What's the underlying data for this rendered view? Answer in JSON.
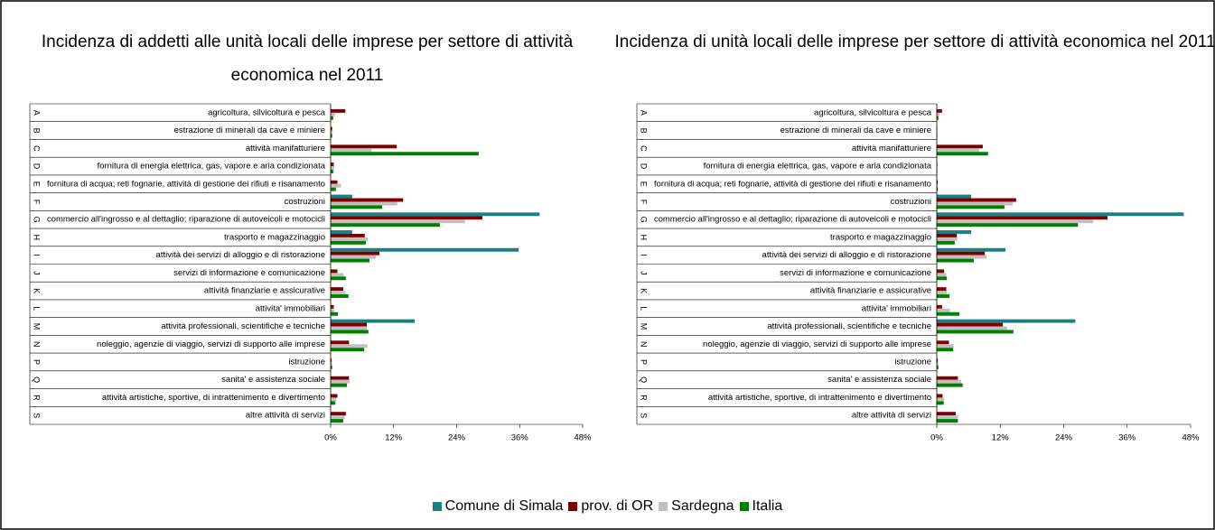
{
  "chart_data": [
    {
      "type": "bar",
      "orientation": "horizontal",
      "title": "Incidenza di addetti alle unità locali delle imprese per settore di attività economica nel 2011",
      "codes": [
        "A",
        "B",
        "C",
        "D",
        "E",
        "F",
        "G",
        "H",
        "I",
        "J",
        "K",
        "L",
        "M",
        "N",
        "P",
        "Q",
        "R",
        "S"
      ],
      "categories": [
        "agricoltura, silvicoltura e pesca",
        "estrazione di minerali da cave e miniere",
        "attività manifatturiere",
        "fornitura di energia elettrica, gas, vapore e aria condizionata",
        "fornitura di acqua; reti fognarie, attività di gestione dei rifiuti e risanamento",
        "costruzioni",
        "commercio all'ingrosso e al dettaglio; riparazione di autoveicoli e motocicli",
        "trasporto e magazzinaggio",
        "attività dei servizi di alloggio e di ristorazione",
        "servizi di informazione e comunicazione",
        "attività finanziarie e assicurative",
        "attivita' immobiliari",
        "attività professionali, scientifiche e tecniche",
        "noleggio, agenzie di viaggio, servizi di supporto alle imprese",
        "istruzione",
        "sanita' e assistenza sociale",
        "attività artistiche, sportive, di intrattenimento e divertimento",
        "altre attività di servizi"
      ],
      "series": [
        {
          "name": "Comune di Simala",
          "color": "#1a8080",
          "values": [
            0,
            0,
            0,
            0,
            0,
            4.1,
            39.8,
            4.1,
            35.8,
            0,
            0,
            0,
            16.0,
            0,
            0,
            0,
            0,
            0
          ]
        },
        {
          "name": "prov. di OR",
          "color": "#800000",
          "values": [
            2.8,
            0.3,
            12.6,
            0.6,
            1.3,
            13.8,
            28.9,
            6.5,
            9.3,
            1.3,
            2.4,
            0.6,
            6.9,
            3.5,
            0.2,
            3.5,
            1.3,
            2.9
          ]
        },
        {
          "name": "Sardegna",
          "color": "#c0c0c0",
          "values": [
            0.8,
            0.4,
            7.8,
            0.7,
            2.0,
            12.7,
            25.6,
            7.1,
            8.6,
            2.5,
            2.8,
            0.7,
            6.9,
            7.0,
            0.3,
            3.6,
            1.1,
            2.7
          ]
        },
        {
          "name": "Italia",
          "color": "#008000",
          "values": [
            0.5,
            0.3,
            28.2,
            0.5,
            1.0,
            9.8,
            20.8,
            6.7,
            7.4,
            2.9,
            3.4,
            1.4,
            7.2,
            6.4,
            0.3,
            3.1,
            0.9,
            2.4
          ]
        }
      ],
      "xlim": [
        0,
        48
      ],
      "xticks": [
        {
          "value": 0,
          "label": "0%"
        },
        {
          "value": 12,
          "label": "12%"
        },
        {
          "value": 24,
          "label": "24%"
        },
        {
          "value": 36,
          "label": "36%"
        },
        {
          "value": 48,
          "label": "48%"
        }
      ]
    },
    {
      "type": "bar",
      "orientation": "horizontal",
      "title": "Incidenza di unità locali delle imprese per settore di attività economica nel 2011",
      "codes": [
        "A",
        "B",
        "C",
        "D",
        "E",
        "F",
        "G",
        "H",
        "I",
        "J",
        "K",
        "L",
        "M",
        "N",
        "P",
        "Q",
        "R",
        "S"
      ],
      "categories": [
        "agricoltura, silvicoltura e pesca",
        "estrazione di minerali da cave e miniere",
        "attività manifatturiere",
        "fornitura di energia elettrica, gas, vapore e aria condizionata",
        "fornitura di acqua; reti fognarie, attività di gestione dei rifiuti e risanamento",
        "costruzioni",
        "commercio all'ingrosso e al dettaglio; riparazione di autoveicoli e motocicli",
        "trasporto e magazzinaggio",
        "attività dei servizi di alloggio e di ristorazione",
        "servizi di informazione e comunicazione",
        "attività finanziarie e assicurative",
        "attivita' immobiliari",
        "attività professionali, scientifiche e tecniche",
        "noleggio, agenzie di viaggio, servizi di supporto alle imprese",
        "istruzione",
        "sanita' e assistenza sociale",
        "attività artistiche, sportive, di intrattenimento e divertimento",
        "altre attività di servizi"
      ],
      "series": [
        {
          "color": "#1a8080",
          "values": [
            0,
            0,
            0,
            0,
            0,
            6.5,
            46.7,
            6.5,
            13.0,
            0,
            0,
            0,
            26.2,
            0,
            0,
            0,
            0,
            0
          ]
        },
        {
          "color": "#800000",
          "values": [
            1.0,
            0.1,
            8.7,
            0.1,
            0.2,
            15.0,
            32.3,
            3.8,
            9.1,
            1.4,
            1.8,
            1.0,
            12.5,
            2.3,
            0.2,
            4.0,
            1.1,
            3.6
          ]
        },
        {
          "color": "#c0c0c0",
          "values": [
            0.5,
            0.1,
            8.0,
            0.1,
            0.2,
            14.4,
            29.6,
            3.9,
            9.4,
            1.8,
            1.9,
            2.5,
            13.3,
            3.2,
            0.3,
            4.6,
            1.4,
            4.0
          ]
        },
        {
          "color": "#008000",
          "values": [
            0.3,
            0.1,
            9.7,
            0.1,
            0.2,
            12.8,
            26.7,
            3.4,
            7.0,
            1.9,
            2.4,
            4.3,
            14.5,
            3.1,
            0.3,
            4.9,
            1.3,
            4.0
          ]
        }
      ],
      "xlim": [
        0,
        48
      ],
      "xticks": [
        {
          "value": 0,
          "label": "0%"
        },
        {
          "value": 12,
          "label": "12%"
        },
        {
          "value": 24,
          "label": "24%"
        },
        {
          "value": 36,
          "label": "36%"
        },
        {
          "value": 48,
          "label": "48%"
        }
      ]
    }
  ]
}
